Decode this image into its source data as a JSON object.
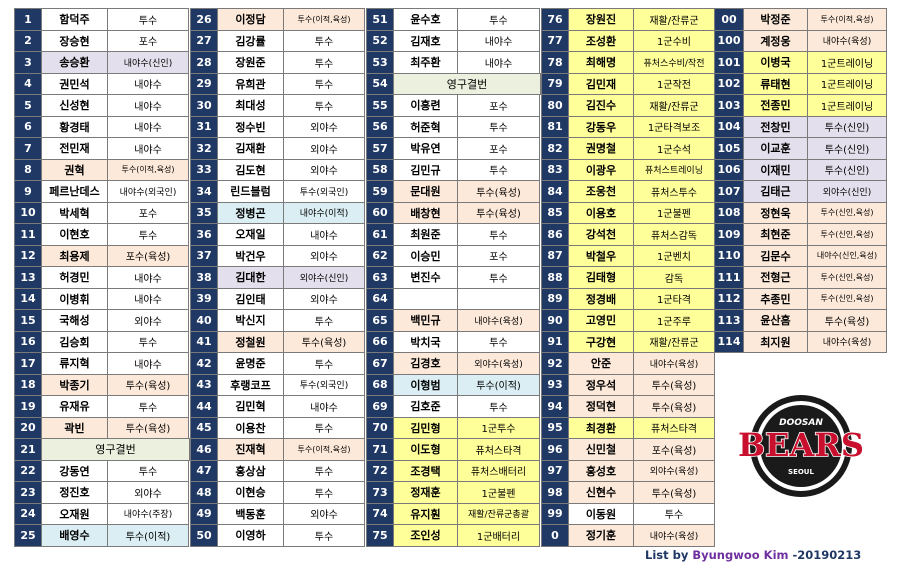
{
  "colors": {
    "number_bg": "#1f3864",
    "beige": "#fde9d9",
    "lavender": "#e4dfec",
    "cyan": "#daeef3",
    "green_span": "#ebf1de",
    "yellow": "#ffff99",
    "white": "#ffffff"
  },
  "columns": [
    {
      "rows": [
        {
          "no": "1",
          "name": "함덕주",
          "pos": "투수"
        },
        {
          "no": "2",
          "name": "장승현",
          "pos": "포수"
        },
        {
          "no": "3",
          "name": "송승환",
          "pos": "내야수(신인)",
          "fill": "lavender"
        },
        {
          "no": "4",
          "name": "권민석",
          "pos": "내야수"
        },
        {
          "no": "5",
          "name": "신성현",
          "pos": "내야수"
        },
        {
          "no": "6",
          "name": "황경태",
          "pos": "내야수"
        },
        {
          "no": "7",
          "name": "전민재",
          "pos": "내야수"
        },
        {
          "no": "8",
          "name": "권혁",
          "pos": "투수(이적,육성)",
          "fill": "beige"
        },
        {
          "no": "9",
          "name": "페르난데스",
          "pos": "내야수(외국인)"
        },
        {
          "no": "10",
          "name": "박세혁",
          "pos": "포수"
        },
        {
          "no": "11",
          "name": "이현호",
          "pos": "투수"
        },
        {
          "no": "12",
          "name": "최용제",
          "pos": "포수(육성)",
          "fill": "beige"
        },
        {
          "no": "13",
          "name": "허경민",
          "pos": "내야수"
        },
        {
          "no": "14",
          "name": "이병휘",
          "pos": "내야수"
        },
        {
          "no": "15",
          "name": "국해성",
          "pos": "외야수"
        },
        {
          "no": "16",
          "name": "김승회",
          "pos": "투수"
        },
        {
          "no": "17",
          "name": "류지혁",
          "pos": "내야수"
        },
        {
          "no": "18",
          "name": "박종기",
          "pos": "투수(육성)",
          "fill": "beige"
        },
        {
          "no": "19",
          "name": "유재유",
          "pos": "투수"
        },
        {
          "no": "20",
          "name": "곽빈",
          "pos": "투수(육성)",
          "fill": "beige"
        },
        {
          "no": "21",
          "span": "영구결번",
          "fill": "green_span"
        },
        {
          "no": "22",
          "name": "강동연",
          "pos": "투수"
        },
        {
          "no": "23",
          "name": "정진호",
          "pos": "외야수"
        },
        {
          "no": "24",
          "name": "오재원",
          "pos": "내야수(주장)"
        },
        {
          "no": "25",
          "name": "배영수",
          "pos": "투수(이적)",
          "fill": "cyan"
        }
      ]
    },
    {
      "rows": [
        {
          "no": "26",
          "name": "이정담",
          "pos": "투수(이적,육성)",
          "fill": "beige"
        },
        {
          "no": "27",
          "name": "김강률",
          "pos": "투수"
        },
        {
          "no": "28",
          "name": "장원준",
          "pos": "투수"
        },
        {
          "no": "29",
          "name": "유희관",
          "pos": "투수"
        },
        {
          "no": "30",
          "name": "최대성",
          "pos": "투수"
        },
        {
          "no": "31",
          "name": "정수빈",
          "pos": "외야수"
        },
        {
          "no": "32",
          "name": "김재환",
          "pos": "외야수"
        },
        {
          "no": "33",
          "name": "김도현",
          "pos": "외야수"
        },
        {
          "no": "34",
          "name": "린드블럼",
          "pos": "투수(외국인)"
        },
        {
          "no": "35",
          "name": "정병곤",
          "pos": "내야수(이적)",
          "fill": "cyan"
        },
        {
          "no": "36",
          "name": "오재일",
          "pos": "내야수"
        },
        {
          "no": "37",
          "name": "박건우",
          "pos": "외야수"
        },
        {
          "no": "38",
          "name": "김대한",
          "pos": "외야수(신인)",
          "fill": "lavender"
        },
        {
          "no": "39",
          "name": "김인태",
          "pos": "외야수"
        },
        {
          "no": "40",
          "name": "박신지",
          "pos": "투수"
        },
        {
          "no": "41",
          "name": "정철원",
          "pos": "투수(육성)",
          "fill": "beige"
        },
        {
          "no": "42",
          "name": "윤명준",
          "pos": "투수"
        },
        {
          "no": "43",
          "name": "후랭코프",
          "pos": "투수(외국인)"
        },
        {
          "no": "44",
          "name": "김민혁",
          "pos": "내야수"
        },
        {
          "no": "45",
          "name": "이용찬",
          "pos": "투수"
        },
        {
          "no": "46",
          "name": "진재혁",
          "pos": "투수(이적,육성)",
          "fill": "beige"
        },
        {
          "no": "47",
          "name": "홍상삼",
          "pos": "투수"
        },
        {
          "no": "48",
          "name": "이현승",
          "pos": "투수"
        },
        {
          "no": "49",
          "name": "백동훈",
          "pos": "외야수"
        },
        {
          "no": "50",
          "name": "이영하",
          "pos": "투수"
        }
      ]
    },
    {
      "rows": [
        {
          "no": "51",
          "name": "윤수호",
          "pos": "투수"
        },
        {
          "no": "52",
          "name": "김재호",
          "pos": "내야수"
        },
        {
          "no": "53",
          "name": "최주환",
          "pos": "내야수"
        },
        {
          "no": "54",
          "span": "영구결번",
          "fill": "green_span"
        },
        {
          "no": "55",
          "name": "이흥련",
          "pos": "포수"
        },
        {
          "no": "56",
          "name": "허준혁",
          "pos": "투수"
        },
        {
          "no": "57",
          "name": "박유연",
          "pos": "포수"
        },
        {
          "no": "58",
          "name": "김민규",
          "pos": "투수"
        },
        {
          "no": "59",
          "name": "문대원",
          "pos": "투수(육성)",
          "fill": "beige"
        },
        {
          "no": "60",
          "name": "배창현",
          "pos": "투수(육성)",
          "fill": "beige"
        },
        {
          "no": "61",
          "name": "최원준",
          "pos": "투수"
        },
        {
          "no": "62",
          "name": "이승민",
          "pos": "포수"
        },
        {
          "no": "63",
          "name": "변진수",
          "pos": "투수"
        },
        {
          "no": "64",
          "name": "",
          "pos": ""
        },
        {
          "no": "65",
          "name": "백민규",
          "pos": "내야수(육성)",
          "fill": "beige"
        },
        {
          "no": "66",
          "name": "박치국",
          "pos": "투수"
        },
        {
          "no": "67",
          "name": "김경호",
          "pos": "외야수(육성)",
          "fill": "beige"
        },
        {
          "no": "68",
          "name": "이형범",
          "pos": "투수(이적)",
          "fill": "cyan"
        },
        {
          "no": "69",
          "name": "김호준",
          "pos": "투수"
        },
        {
          "no": "70",
          "name": "김민형",
          "pos": "1군투수",
          "fill": "yellow"
        },
        {
          "no": "71",
          "name": "이도형",
          "pos": "퓨처스타격",
          "fill": "yellow"
        },
        {
          "no": "72",
          "name": "조경택",
          "pos": "퓨처스배터리",
          "fill": "yellow"
        },
        {
          "no": "73",
          "name": "정재훈",
          "pos": "1군불펜",
          "fill": "yellow"
        },
        {
          "no": "74",
          "name": "유지훤",
          "pos": "재활/잔류군총괄",
          "fill": "yellow"
        },
        {
          "no": "75",
          "name": "조인성",
          "pos": "1군배터리",
          "fill": "yellow"
        }
      ]
    },
    {
      "rows": [
        {
          "no": "76",
          "name": "장원진",
          "pos": "재활/잔류군",
          "fill": "yellow"
        },
        {
          "no": "77",
          "name": "조성환",
          "pos": "1군수비",
          "fill": "yellow"
        },
        {
          "no": "78",
          "name": "최해명",
          "pos": "퓨처스수비/작전",
          "fill": "yellow"
        },
        {
          "no": "79",
          "name": "김민재",
          "pos": "1군작전",
          "fill": "yellow"
        },
        {
          "no": "80",
          "name": "김진수",
          "pos": "재활/잔류군",
          "fill": "yellow"
        },
        {
          "no": "81",
          "name": "강동우",
          "pos": "1군타격보조",
          "fill": "yellow"
        },
        {
          "no": "82",
          "name": "권명철",
          "pos": "1군수석",
          "fill": "yellow"
        },
        {
          "no": "83",
          "name": "이광우",
          "pos": "퓨처스트레이닝",
          "fill": "yellow"
        },
        {
          "no": "84",
          "name": "조웅천",
          "pos": "퓨처스투수",
          "fill": "yellow"
        },
        {
          "no": "85",
          "name": "이용호",
          "pos": "1군불펜",
          "fill": "yellow"
        },
        {
          "no": "86",
          "name": "강석천",
          "pos": "퓨처스감독",
          "fill": "yellow"
        },
        {
          "no": "87",
          "name": "박철우",
          "pos": "1군벤치",
          "fill": "yellow"
        },
        {
          "no": "88",
          "name": "김태형",
          "pos": "감독",
          "fill": "yellow"
        },
        {
          "no": "89",
          "name": "정경배",
          "pos": "1군타격",
          "fill": "yellow"
        },
        {
          "no": "90",
          "name": "고영민",
          "pos": "1군주루",
          "fill": "yellow"
        },
        {
          "no": "91",
          "name": "구강현",
          "pos": "재활/잔류군",
          "fill": "yellow"
        },
        {
          "no": "92",
          "name": "안준",
          "pos": "내야수(육성)",
          "fill": "beige"
        },
        {
          "no": "93",
          "name": "정우석",
          "pos": "투수(육성)",
          "fill": "beige"
        },
        {
          "no": "94",
          "name": "정덕현",
          "pos": "투수(육성)",
          "fill": "beige"
        },
        {
          "no": "95",
          "name": "최경환",
          "pos": "퓨처스타격",
          "fill": "yellow"
        },
        {
          "no": "96",
          "name": "신민철",
          "pos": "포수(육성)",
          "fill": "beige"
        },
        {
          "no": "97",
          "name": "홍성호",
          "pos": "외야수(육성)",
          "fill": "beige"
        },
        {
          "no": "98",
          "name": "신현수",
          "pos": "투수(육성)",
          "fill": "beige"
        },
        {
          "no": "99",
          "name": "이동원",
          "pos": "투수"
        },
        {
          "no": "0",
          "name": "정기훈",
          "pos": "내야수(육성)",
          "fill": "beige"
        }
      ]
    },
    {
      "rows": [
        {
          "no": "00",
          "name": "박정준",
          "pos": "투수(이적,육성)",
          "fill": "beige"
        },
        {
          "no": "100",
          "name": "계정웅",
          "pos": "내야수(육성)",
          "fill": "beige"
        },
        {
          "no": "101",
          "name": "이병국",
          "pos": "1군트레이닝",
          "fill": "yellow"
        },
        {
          "no": "102",
          "name": "류태현",
          "pos": "1군트레이닝",
          "fill": "yellow"
        },
        {
          "no": "103",
          "name": "전종민",
          "pos": "1군트레이닝",
          "fill": "yellow"
        },
        {
          "no": "104",
          "name": "전창민",
          "pos": "투수(신인)",
          "fill": "lavender"
        },
        {
          "no": "105",
          "name": "이교훈",
          "pos": "투수(신인)",
          "fill": "lavender"
        },
        {
          "no": "106",
          "name": "이재민",
          "pos": "투수(신인)",
          "fill": "lavender"
        },
        {
          "no": "107",
          "name": "김태근",
          "pos": "외야수(신인)",
          "fill": "lavender"
        },
        {
          "no": "108",
          "name": "정현욱",
          "pos": "투수(신인,육성)",
          "fill": "beige"
        },
        {
          "no": "109",
          "name": "최현준",
          "pos": "투수(신인,육성)",
          "fill": "beige"
        },
        {
          "no": "110",
          "name": "김문수",
          "pos": "내야수(신인,육성)",
          "fill": "beige"
        },
        {
          "no": "111",
          "name": "전형근",
          "pos": "투수(신인,육성)",
          "fill": "beige"
        },
        {
          "no": "112",
          "name": "추종민",
          "pos": "투수(신인,육성)",
          "fill": "beige"
        },
        {
          "no": "113",
          "name": "윤산흠",
          "pos": "투수(육성)",
          "fill": "beige"
        },
        {
          "no": "114",
          "name": "최지원",
          "pos": "내야수(육성)",
          "fill": "beige"
        }
      ]
    }
  ],
  "logo": {
    "top_text": "DOOSAN",
    "main_text": "BEARS",
    "bottom_text": "SEOUL"
  },
  "credit": {
    "prefix": "List by ",
    "author": "Byungwoo Kim",
    "suffix": " -20190213"
  }
}
